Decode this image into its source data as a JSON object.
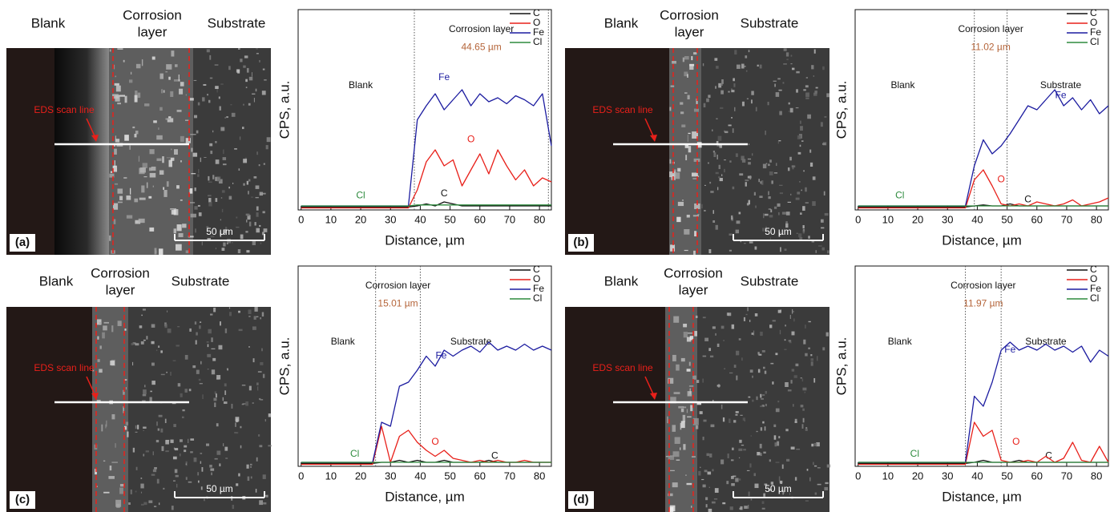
{
  "panels": [
    {
      "label": "(a)",
      "blank": "Blank",
      "layer": [
        "Corrosion",
        "layer"
      ],
      "substrate": "Substrate",
      "scan": "EDS scan line",
      "scale": "50 µm"
    },
    {
      "label": "(b)",
      "blank": "Blank",
      "layer": [
        "Corrosion",
        "layer"
      ],
      "substrate": "Substrate",
      "scan": "EDS scan line",
      "scale": "50 µm"
    },
    {
      "label": "(c)",
      "blank": "Blank",
      "layer": [
        "Corrosion",
        "layer"
      ],
      "substrate": "Substrate",
      "scan": "EDS scan line",
      "scale": "50 µm"
    },
    {
      "label": "(d)",
      "blank": "Blank",
      "layer": [
        "Corrosion",
        "layer"
      ],
      "substrate": "Substrate",
      "scan": "EDS scan line",
      "scale": "50 µm"
    }
  ],
  "chart_data": [
    {
      "type": "line",
      "xlabel": "Distance, µm",
      "ylabel": "CPS, a.u.",
      "annotations": {
        "layer": "Corrosion layer",
        "thickness": "44.65 µm",
        "blank": "Blank"
      },
      "boundaries": [
        38,
        83
      ],
      "x": [
        0,
        3,
        6,
        9,
        12,
        15,
        18,
        21,
        24,
        27,
        30,
        33,
        36,
        39,
        42,
        45,
        48,
        51,
        54,
        57,
        60,
        63,
        66,
        69,
        72,
        75,
        78,
        81,
        84
      ],
      "series": [
        {
          "name": "C",
          "color": "#111111",
          "values": [
            1.5,
            1.5,
            1.5,
            1.5,
            1.5,
            1.5,
            1.5,
            1.5,
            1.5,
            1.5,
            1.5,
            1.5,
            1.5,
            2,
            3,
            2,
            4,
            3,
            2,
            2,
            2,
            2,
            2,
            2,
            2,
            2,
            2,
            2,
            2
          ]
        },
        {
          "name": "O",
          "color": "#e8201a",
          "values": [
            1,
            1,
            1,
            1,
            1,
            1,
            1,
            1,
            1,
            1,
            1,
            1,
            1,
            10,
            24,
            30,
            22,
            25,
            12,
            20,
            28,
            18,
            30,
            22,
            15,
            20,
            12,
            16,
            14
          ]
        },
        {
          "name": "Fe",
          "color": "#1c1ca0",
          "values": [
            2,
            2,
            2,
            2,
            2,
            2,
            2,
            2,
            2,
            2,
            2,
            2,
            2,
            45,
            52,
            58,
            50,
            55,
            60,
            52,
            58,
            54,
            56,
            53,
            57,
            55,
            52,
            58,
            32
          ]
        },
        {
          "name": "Cl",
          "color": "#2e8b3e",
          "values": [
            2,
            2,
            2,
            2,
            2,
            2,
            2,
            2,
            2,
            2,
            2,
            2,
            2,
            2.5,
            2.5,
            2.5,
            2.5,
            2.5,
            2.5,
            2.5,
            2.5,
            2.5,
            2.5,
            2.5,
            2.5,
            2.5,
            2.5,
            2.5,
            2.5
          ]
        }
      ],
      "xlim": [
        -1,
        84
      ],
      "ylim": [
        0,
        100
      ],
      "xticks": [
        0,
        10,
        20,
        30,
        40,
        50,
        60,
        70,
        80
      ]
    },
    {
      "type": "line",
      "xlabel": "Distance, µm",
      "ylabel": "CPS, a.u.",
      "annotations": {
        "layer": "Corrosion layer",
        "thickness": "11.02 µm",
        "blank": "Blank",
        "substrate": "Substrate"
      },
      "boundaries": [
        39,
        50
      ],
      "x": [
        0,
        3,
        6,
        9,
        12,
        15,
        18,
        21,
        24,
        27,
        30,
        33,
        36,
        39,
        42,
        45,
        48,
        51,
        54,
        57,
        60,
        63,
        66,
        69,
        72,
        75,
        78,
        81,
        84
      ],
      "series": [
        {
          "name": "C",
          "color": "#111111",
          "values": [
            1.5,
            1.5,
            1.5,
            1.5,
            1.5,
            1.5,
            1.5,
            1.5,
            1.5,
            1.5,
            1.5,
            1.5,
            1.5,
            2,
            2.5,
            2,
            2,
            3,
            2,
            2,
            2,
            2,
            2,
            2,
            2,
            2,
            2,
            2,
            2
          ]
        },
        {
          "name": "O",
          "color": "#e8201a",
          "values": [
            1,
            1,
            1,
            1,
            1,
            1,
            1,
            1,
            1,
            1,
            1,
            1,
            1,
            15,
            20,
            12,
            3,
            2,
            3,
            2,
            4,
            3,
            2,
            3,
            5,
            2,
            3,
            4,
            6
          ]
        },
        {
          "name": "Fe",
          "color": "#1c1ca0",
          "values": [
            2,
            2,
            2,
            2,
            2,
            2,
            2,
            2,
            2,
            2,
            2,
            2,
            2,
            22,
            35,
            28,
            32,
            38,
            45,
            52,
            50,
            55,
            60,
            52,
            56,
            50,
            55,
            48,
            52
          ]
        },
        {
          "name": "Cl",
          "color": "#2e8b3e",
          "values": [
            2,
            2,
            2,
            2,
            2,
            2,
            2,
            2,
            2,
            2,
            2,
            2,
            2,
            2,
            2,
            2,
            2,
            2,
            2,
            2,
            2,
            2,
            2,
            2,
            2,
            2,
            2,
            2,
            2
          ]
        }
      ],
      "xlim": [
        -1,
        84
      ],
      "ylim": [
        0,
        100
      ],
      "xticks": [
        0,
        10,
        20,
        30,
        40,
        50,
        60,
        70,
        80
      ]
    },
    {
      "type": "line",
      "xlabel": "Distance, µm",
      "ylabel": "CPS, a.u.",
      "annotations": {
        "layer": "Corrosion layer",
        "thickness": "15.01 µm",
        "blank": "Blank",
        "substrate": "Substrate"
      },
      "boundaries": [
        25,
        40
      ],
      "x": [
        0,
        3,
        6,
        9,
        12,
        15,
        18,
        21,
        24,
        27,
        30,
        33,
        36,
        39,
        42,
        45,
        48,
        51,
        54,
        57,
        60,
        63,
        66,
        69,
        72,
        75,
        78,
        81,
        84
      ],
      "series": [
        {
          "name": "C",
          "color": "#111111",
          "values": [
            1.5,
            1.5,
            1.5,
            1.5,
            1.5,
            1.5,
            1.5,
            1.5,
            1.5,
            2,
            2,
            3,
            2,
            3,
            2,
            2,
            3,
            2,
            2,
            2,
            2,
            3,
            2,
            2,
            2,
            2,
            2,
            2,
            2
          ]
        },
        {
          "name": "O",
          "color": "#e8201a",
          "values": [
            1,
            1,
            1,
            1,
            1,
            1,
            1,
            1,
            1,
            20,
            2,
            15,
            18,
            12,
            8,
            5,
            8,
            4,
            3,
            2,
            3,
            2,
            3,
            2,
            2,
            3,
            2,
            2,
            2
          ]
        },
        {
          "name": "Fe",
          "color": "#1c1ca0",
          "values": [
            2,
            2,
            2,
            2,
            2,
            2,
            2,
            2,
            2,
            22,
            20,
            40,
            42,
            48,
            55,
            50,
            58,
            55,
            58,
            60,
            57,
            62,
            58,
            60,
            58,
            61,
            58,
            60,
            58
          ]
        },
        {
          "name": "Cl",
          "color": "#2e8b3e",
          "values": [
            2,
            2,
            2,
            2,
            2,
            2,
            2,
            2,
            2,
            2,
            2,
            2,
            2,
            2,
            2,
            2,
            2,
            2,
            2,
            2,
            2,
            2,
            2,
            2,
            2,
            2,
            2,
            2,
            2
          ]
        }
      ],
      "xlim": [
        -1,
        84
      ],
      "ylim": [
        0,
        100
      ],
      "xticks": [
        0,
        10,
        20,
        30,
        40,
        50,
        60,
        70,
        80
      ]
    },
    {
      "type": "line",
      "xlabel": "Distance, µm",
      "ylabel": "CPS, a.u.",
      "annotations": {
        "layer": "Corrosion layer",
        "thickness": "11.97 µm",
        "blank": "Blank",
        "substrate": "Substrate"
      },
      "boundaries": [
        36,
        48
      ],
      "x": [
        0,
        3,
        6,
        9,
        12,
        15,
        18,
        21,
        24,
        27,
        30,
        33,
        36,
        39,
        42,
        45,
        48,
        51,
        54,
        57,
        60,
        63,
        66,
        69,
        72,
        75,
        78,
        81,
        84
      ],
      "series": [
        {
          "name": "C",
          "color": "#111111",
          "values": [
            1.5,
            1.5,
            1.5,
            1.5,
            1.5,
            1.5,
            1.5,
            1.5,
            1.5,
            1.5,
            1.5,
            1.5,
            1.5,
            2,
            3,
            2,
            2,
            2,
            3,
            2,
            2,
            2,
            2,
            2,
            2,
            2,
            2,
            2,
            2
          ]
        },
        {
          "name": "O",
          "color": "#e8201a",
          "values": [
            1,
            1,
            1,
            1,
            1,
            1,
            1,
            1,
            1,
            1,
            1,
            1,
            1,
            22,
            15,
            18,
            3,
            2,
            2,
            3,
            2,
            5,
            2,
            4,
            12,
            3,
            2,
            10,
            2
          ]
        },
        {
          "name": "Fe",
          "color": "#1c1ca0",
          "values": [
            2,
            2,
            2,
            2,
            2,
            2,
            2,
            2,
            2,
            2,
            2,
            2,
            2,
            35,
            30,
            42,
            58,
            62,
            58,
            60,
            58,
            61,
            58,
            60,
            57,
            60,
            52,
            58,
            55
          ]
        },
        {
          "name": "Cl",
          "color": "#2e8b3e",
          "values": [
            2,
            2,
            2,
            2,
            2,
            2,
            2,
            2,
            2,
            2,
            2,
            2,
            2,
            2,
            2,
            2,
            2,
            2,
            2,
            2,
            2,
            2,
            2,
            2,
            2,
            2,
            2,
            2,
            2
          ]
        }
      ],
      "xlim": [
        -1,
        84
      ],
      "ylim": [
        0,
        100
      ],
      "xticks": [
        0,
        10,
        20,
        30,
        40,
        50,
        60,
        70,
        80
      ]
    }
  ]
}
